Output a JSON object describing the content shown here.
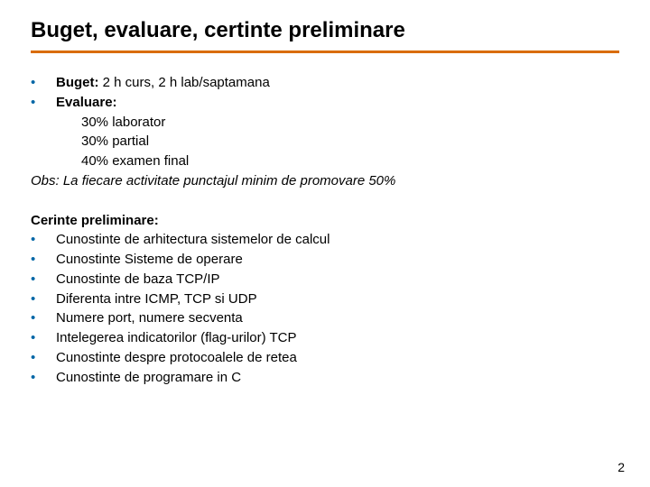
{
  "colors": {
    "rule": "#d96c00",
    "bullet": "#0066a6",
    "text": "#000000",
    "background": "#ffffff"
  },
  "title": "Buget, evaluare, certinte preliminare",
  "section1": {
    "line1_label": "Buget:",
    "line1_rest": " 2 h curs, 2 h lab/saptamana",
    "line2_label": "Evaluare:",
    "sub1": "30% laborator",
    "sub2": "30% partial",
    "sub3": "40% examen final",
    "obs": "Obs: La fiecare activitate punctajul minim de promovare 50%"
  },
  "section2": {
    "heading": "Cerinte preliminare:",
    "items": [
      "Cunostinte de arhitectura sistemelor de calcul",
      "Cunostinte Sisteme de operare",
      "Cunostinte de baza TCP/IP",
      "Diferenta intre ICMP, TCP si UDP",
      "Numere port, numere secventa",
      "Intelegerea indicatorilor (flag-urilor) TCP",
      "Cunostinte despre protocoalele de retea",
      "Cunostinte de programare in C"
    ]
  },
  "page_number": "2",
  "bullet_char": "•"
}
